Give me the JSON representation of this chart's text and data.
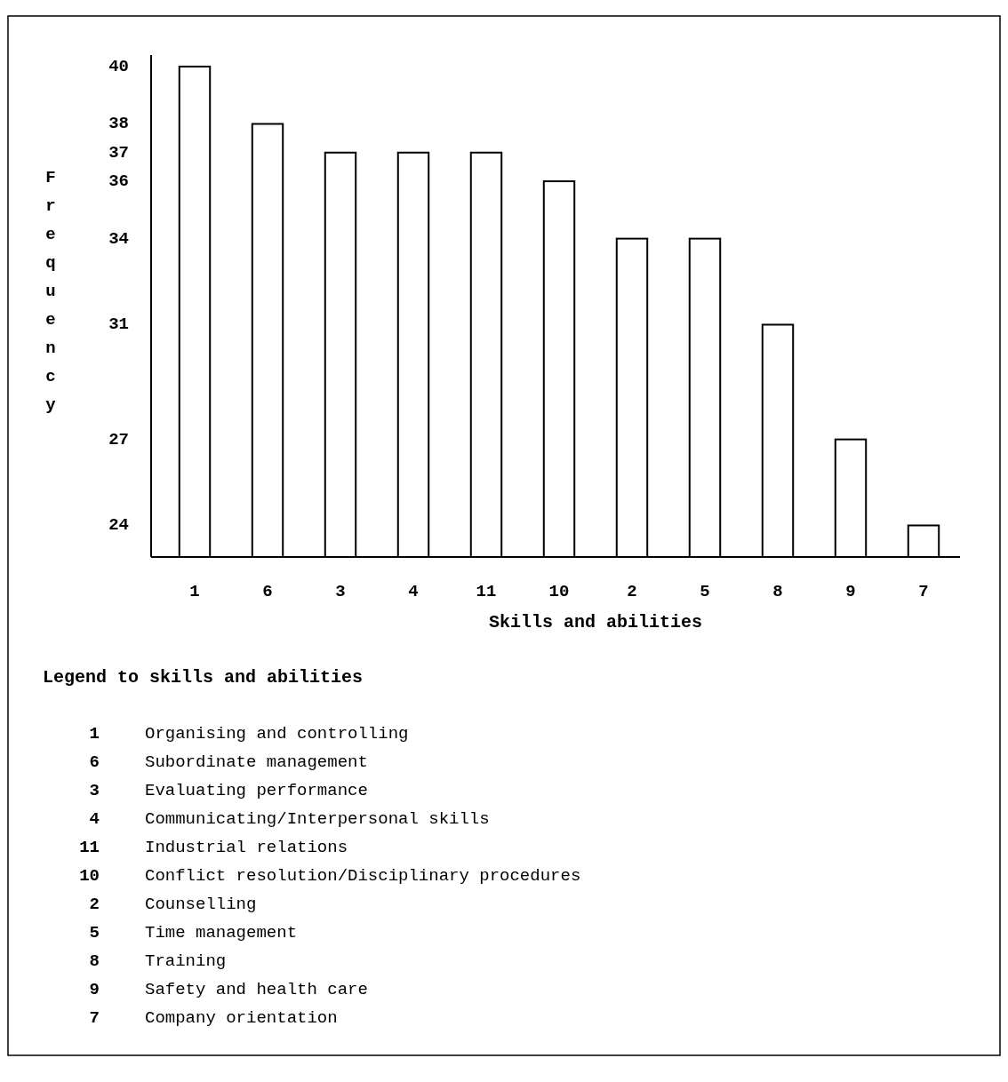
{
  "chart_data": {
    "type": "bar",
    "xlabel": "Skills and abilities",
    "ylabel": "Frequency",
    "categories": [
      "1",
      "6",
      "3",
      "4",
      "11",
      "10",
      "2",
      "5",
      "8",
      "9",
      "7"
    ],
    "values": [
      40,
      38,
      37,
      37,
      37,
      36,
      34,
      34,
      31,
      27,
      24
    ],
    "color": "#ffffff",
    "ylim": [
      22.9,
      40.4
    ],
    "yticks": [
      24,
      27,
      31,
      34,
      36,
      37,
      38,
      40
    ],
    "grid": false,
    "annotations": [
      "Legend to skills and abilities",
      "1 Organising and controlling",
      "6 Subordinate management",
      "3 Evaluating performance",
      "4 Communicating/Interpersonal skills",
      "11 Industrial relations",
      "10 Conflict resolution/Disciplinary procedures",
      "2 Counselling",
      "5 Time management",
      "8 Training",
      "9 Safety and health care",
      "7 Company orientation"
    ]
  }
}
